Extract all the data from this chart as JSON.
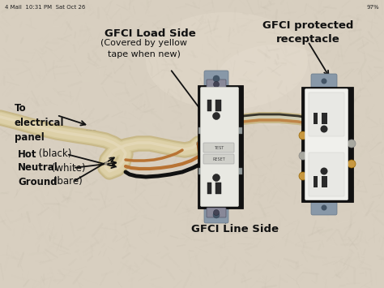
{
  "bg_color": "#d8cfc0",
  "bg_light": "#e8e0d0",
  "bg_dark": "#b8aa98",
  "status_left": "4 Mail  10:31 PM  Sat Oct 26",
  "status_right": "97%",
  "label_load_side": "GFCI Load Side",
  "label_load_sub": "(Covered by yellow\ntape when new)",
  "label_protected": "GFCI protected\nreceptacle",
  "label_panel": "To\nelectrical\npanel",
  "label_hot_bold": "Hot",
  "label_hot_rest": " (black)",
  "label_neutral_bold": "Neutral",
  "label_neutral_rest": " (white)",
  "label_ground_bold": "Ground",
  "label_ground_rest": " (bare)",
  "label_line_side": "GFCI Line Side",
  "cable_color": "#cfc0a0",
  "cable_dark": "#b0a080",
  "wire_black": "#111111",
  "wire_copper": "#b87333",
  "wire_white": "#ddddcc",
  "gfci_body_dark": "#1a1a1a",
  "gfci_face_light": "#e8e8e0",
  "gfci_face_mid": "#d0d0c8",
  "outlet_white": "#f0f0ec",
  "metal_silver": "#a0a8b0",
  "metal_mid": "#808890",
  "screw_brass": "#c8a840",
  "text_black": "#111111",
  "arrow_color": "#111111"
}
